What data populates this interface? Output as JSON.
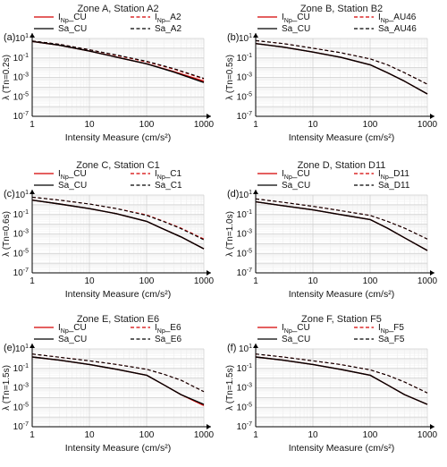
{
  "chart_data": [
    {
      "type": "line",
      "panel_label": "(a)",
      "title": "Zone A, Station A2",
      "xlabel": "Intensity Measure (cm/s²)",
      "ylabel": "λ (Tn=0.2s)",
      "x_scale": "log",
      "y_scale": "log",
      "xlim": [
        1,
        1000
      ],
      "ylim": [
        1e-07,
        10
      ],
      "grid": true,
      "legend_position": "top",
      "x": [
        1,
        3,
        10,
        30,
        100,
        300,
        1000
      ],
      "series": [
        {
          "name": "I_Np_CU",
          "color": "#d40000",
          "dash": "solid",
          "values": [
            5,
            2,
            0.5,
            0.12,
            0.025,
            0.004,
            0.0004
          ]
        },
        {
          "name": "I_Np_A2",
          "color": "#d40000",
          "dash": "dashed",
          "values": [
            5.5,
            2.5,
            0.7,
            0.18,
            0.04,
            0.007,
            0.0007
          ]
        },
        {
          "name": "Sa_CU",
          "color": "#000000",
          "dash": "solid",
          "values": [
            5,
            2,
            0.5,
            0.12,
            0.025,
            0.0035,
            0.0003
          ]
        },
        {
          "name": "Sa_A2",
          "color": "#000000",
          "dash": "dashed",
          "values": [
            5.5,
            2.5,
            0.7,
            0.2,
            0.045,
            0.008,
            0.0008
          ]
        }
      ]
    },
    {
      "type": "line",
      "panel_label": "(b)",
      "title": "Zone B, Station B2",
      "xlabel": "Intensity Measure (cm/s²)",
      "ylabel": "λ (Tn=0.5s)",
      "x_scale": "log",
      "y_scale": "log",
      "xlim": [
        1,
        1000
      ],
      "ylim": [
        1e-07,
        10
      ],
      "grid": true,
      "legend_position": "top",
      "x": [
        1,
        3,
        10,
        30,
        100,
        200,
        400,
        1000
      ],
      "series": [
        {
          "name": "I_Np_CU",
          "color": "#d40000",
          "dash": "solid",
          "values": [
            3,
            1.3,
            0.4,
            0.12,
            0.02,
            0.003,
            0.0004,
            2e-05
          ]
        },
        {
          "name": "I_Np_AU46",
          "color": "#d40000",
          "dash": "dashed",
          "values": [
            6,
            3,
            1,
            0.35,
            0.08,
            0.02,
            0.003,
            0.0002
          ]
        },
        {
          "name": "Sa_CU",
          "color": "#000000",
          "dash": "solid",
          "values": [
            3,
            1.3,
            0.4,
            0.12,
            0.02,
            0.003,
            0.0004,
            2e-05
          ]
        },
        {
          "name": "Sa_AU46",
          "color": "#000000",
          "dash": "dashed",
          "values": [
            6,
            3,
            1,
            0.35,
            0.08,
            0.02,
            0.003,
            0.0002
          ]
        }
      ]
    },
    {
      "type": "line",
      "panel_label": "(c)",
      "title": "Zone C, Station C1",
      "xlabel": "Intensity Measure (cm/s²)",
      "ylabel": "λ (Tn=0.6s)",
      "x_scale": "log",
      "y_scale": "log",
      "xlim": [
        1,
        1000
      ],
      "ylim": [
        1e-07,
        10
      ],
      "grid": true,
      "legend_position": "top",
      "x": [
        1,
        3,
        10,
        30,
        100,
        200,
        400,
        1000
      ],
      "series": [
        {
          "name": "I_Np_CU",
          "color": "#d40000",
          "dash": "solid",
          "values": [
            3,
            1.2,
            0.4,
            0.12,
            0.02,
            0.003,
            0.0005,
            3e-05
          ]
        },
        {
          "name": "I_Np_C1",
          "color": "#d40000",
          "dash": "dashed",
          "values": [
            6,
            3,
            1.2,
            0.4,
            0.09,
            0.02,
            0.004,
            0.0003
          ]
        },
        {
          "name": "Sa_CU",
          "color": "#000000",
          "dash": "solid",
          "values": [
            3,
            1.2,
            0.4,
            0.12,
            0.02,
            0.003,
            0.0005,
            3e-05
          ]
        },
        {
          "name": "Sa_C1",
          "color": "#000000",
          "dash": "dashed",
          "values": [
            6,
            3,
            1.2,
            0.4,
            0.08,
            0.018,
            0.0035,
            0.00025
          ]
        }
      ]
    },
    {
      "type": "line",
      "panel_label": "(d)",
      "title": "Zone D, Station D11",
      "xlabel": "Intensity Measure (cm/s²)",
      "ylabel": "λ (Tn=1.0s)",
      "x_scale": "log",
      "y_scale": "log",
      "xlim": [
        1,
        1000
      ],
      "ylim": [
        1e-07,
        10
      ],
      "grid": true,
      "legend_position": "top",
      "x": [
        1,
        3,
        10,
        30,
        100,
        200,
        400,
        1000
      ],
      "series": [
        {
          "name": "I_Np_CU",
          "color": "#d40000",
          "dash": "solid",
          "values": [
            2,
            0.8,
            0.3,
            0.1,
            0.03,
            0.004,
            0.0004,
            2e-05
          ]
        },
        {
          "name": "I_Np_D11",
          "color": "#d40000",
          "dash": "dashed",
          "values": [
            4,
            1.8,
            0.7,
            0.25,
            0.08,
            0.02,
            0.004,
            0.0003
          ]
        },
        {
          "name": "Sa_CU",
          "color": "#000000",
          "dash": "solid",
          "values": [
            2,
            0.8,
            0.3,
            0.1,
            0.03,
            0.004,
            0.0004,
            2e-05
          ]
        },
        {
          "name": "Sa_D11",
          "color": "#000000",
          "dash": "dashed",
          "values": [
            4,
            1.8,
            0.7,
            0.25,
            0.08,
            0.02,
            0.004,
            0.0003
          ]
        }
      ]
    },
    {
      "type": "line",
      "panel_label": "(e)",
      "title": "Zone E, Station E6",
      "xlabel": "Intensity Measure (cm/s²)",
      "ylabel": "λ (Tn=1.5s)",
      "x_scale": "log",
      "y_scale": "log",
      "xlim": [
        1,
        1000
      ],
      "ylim": [
        1e-07,
        10
      ],
      "grid": true,
      "legend_position": "top",
      "x": [
        1,
        3,
        10,
        30,
        100,
        200,
        400,
        1000
      ],
      "series": [
        {
          "name": "I_Np_CU",
          "color": "#d40000",
          "dash": "solid",
          "values": [
            1.5,
            0.7,
            0.25,
            0.08,
            0.02,
            0.002,
            0.0002,
            1.5e-05
          ]
        },
        {
          "name": "I_Np_E6",
          "color": "#d40000",
          "dash": "dashed",
          "values": [
            3,
            1.4,
            0.6,
            0.25,
            0.08,
            0.025,
            0.006,
            0.0004
          ]
        },
        {
          "name": "Sa_CU",
          "color": "#000000",
          "dash": "solid",
          "values": [
            1.5,
            0.7,
            0.25,
            0.08,
            0.02,
            0.002,
            0.0002,
            2e-05
          ]
        },
        {
          "name": "Sa_E6",
          "color": "#000000",
          "dash": "dashed",
          "values": [
            3,
            1.4,
            0.6,
            0.25,
            0.08,
            0.025,
            0.006,
            0.0004
          ]
        }
      ]
    },
    {
      "type": "line",
      "panel_label": "(f)",
      "title": "Zone F, Station F5",
      "xlabel": "Intensity Measure (cm/s²)",
      "ylabel": "λ (Tn=1.5s)",
      "x_scale": "log",
      "y_scale": "log",
      "xlim": [
        1,
        1000
      ],
      "ylim": [
        1e-07,
        10
      ],
      "grid": true,
      "legend_position": "top",
      "x": [
        1,
        3,
        10,
        30,
        100,
        200,
        400,
        1000
      ],
      "series": [
        {
          "name": "I_Np_CU",
          "color": "#d40000",
          "dash": "solid",
          "values": [
            1.5,
            0.7,
            0.25,
            0.08,
            0.02,
            0.002,
            0.0002,
            2e-05
          ]
        },
        {
          "name": "I_Np_F5",
          "color": "#d40000",
          "dash": "dashed",
          "values": [
            3,
            1.5,
            0.6,
            0.25,
            0.07,
            0.02,
            0.004,
            0.0003
          ]
        },
        {
          "name": "Sa_CU",
          "color": "#000000",
          "dash": "solid",
          "values": [
            1.5,
            0.7,
            0.25,
            0.08,
            0.02,
            0.002,
            0.0002,
            2e-05
          ]
        },
        {
          "name": "Sa_F5",
          "color": "#000000",
          "dash": "dashed",
          "values": [
            3,
            1.5,
            0.6,
            0.25,
            0.07,
            0.02,
            0.004,
            0.0003
          ]
        }
      ]
    }
  ]
}
